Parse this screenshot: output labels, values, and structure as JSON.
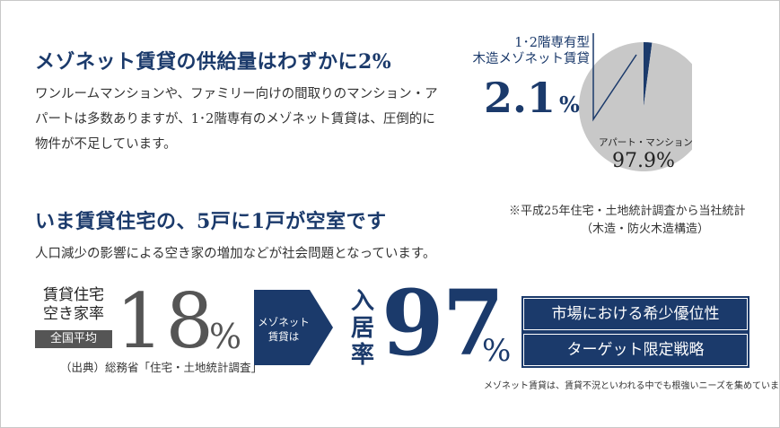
{
  "section1": {
    "heading": "メゾネット賃貸の供給量はわずかに2%",
    "body": "ワンルームマンションや、ファミリー向けの間取りのマンション・アパートは多数ありますが、1･2階専有のメゾネット賃貸は、圧倒的に物件が不足しています。"
  },
  "chart_data": {
    "type": "pie",
    "labels": [
      "1･2階専有型\n木造メゾネット賃貸",
      "アパート・マンション"
    ],
    "values": [
      2.1,
      97.9
    ],
    "units": "%",
    "colors": [
      "#1b3a6b",
      "#c8c8c8"
    ],
    "value_labels": {
      "maisonette_value": "2.1",
      "maisonette_unit": "%",
      "apartment_value": "97.9%"
    },
    "label_lines": {
      "line1": "1･2階専有型",
      "line2": "木造メゾネット賃貸"
    },
    "apartment_label": "アパート・マンション"
  },
  "source_note": {
    "line1": "※平成25年住宅・土地統計調査から当社統計",
    "line2": "（木造・防火木造構造）"
  },
  "section2": {
    "heading": "いま賃貸住宅の、5戸に1戸が空室です",
    "body": "人口減少の影響による空き家の増加などが社会問題となっています。"
  },
  "vacancy": {
    "label_line1": "賃貸住宅",
    "label_line2": "空き家率",
    "badge": "全国平均",
    "value": "18",
    "unit": "%",
    "source": "（出典）総務省「住宅・土地統計調査」"
  },
  "arrow": {
    "line1": "メゾネット",
    "line2": "賃貸は"
  },
  "occupancy": {
    "label_chars": [
      "入",
      "居",
      "率"
    ],
    "value": "97",
    "unit": "%",
    "note": "メゾネット賃貸は、賃貸不況といわれる中でも根強いニーズを集めています"
  },
  "pills": [
    "市場における希少優位性",
    "ターゲット限定戦略"
  ]
}
